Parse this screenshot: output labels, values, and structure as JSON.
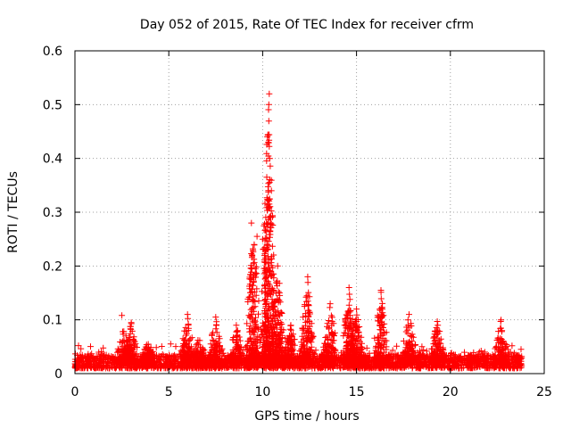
{
  "chart_data": {
    "type": "scatter",
    "title": "Day 052 of 2015, Rate Of TEC Index for receiver cfrm",
    "xlabel": "GPS time / hours",
    "ylabel": "ROTI / TECUs",
    "xlim": [
      0,
      25
    ],
    "ylim": [
      0,
      0.6
    ],
    "xticks": [
      0,
      5,
      10,
      15,
      20,
      25
    ],
    "yticks": [
      0,
      0.1,
      0.2,
      0.3,
      0.4,
      0.5,
      0.6
    ],
    "xtick_labels": [
      "0",
      "5",
      "10",
      "15",
      "20",
      "25"
    ],
    "ytick_labels": [
      "0",
      "0.1",
      "0.2",
      "0.3",
      "0.4",
      "0.5",
      "0.6"
    ],
    "grid": true,
    "marker": "+",
    "series": [
      {
        "name": "ROTI",
        "color": "#ff0000",
        "time_range_hours": [
          0,
          23.8
        ],
        "baseline_roti": [
          0.01,
          0.035
        ],
        "notable_points": [
          {
            "x": 10.35,
            "y": 0.52
          },
          {
            "x": 10.33,
            "y": 0.5
          },
          {
            "x": 10.25,
            "y": 0.44
          },
          {
            "x": 10.3,
            "y": 0.43
          },
          {
            "x": 10.22,
            "y": 0.365
          },
          {
            "x": 10.35,
            "y": 0.315
          },
          {
            "x": 10.4,
            "y": 0.29
          },
          {
            "x": 10.3,
            "y": 0.28
          },
          {
            "x": 9.4,
            "y": 0.28
          },
          {
            "x": 9.7,
            "y": 0.255
          },
          {
            "x": 10.0,
            "y": 0.25
          },
          {
            "x": 9.55,
            "y": 0.24
          },
          {
            "x": 10.8,
            "y": 0.2
          },
          {
            "x": 12.4,
            "y": 0.18
          },
          {
            "x": 14.6,
            "y": 0.16
          },
          {
            "x": 16.3,
            "y": 0.155
          },
          {
            "x": 13.6,
            "y": 0.13
          },
          {
            "x": 15.0,
            "y": 0.12
          },
          {
            "x": 6.0,
            "y": 0.11
          },
          {
            "x": 17.8,
            "y": 0.11
          },
          {
            "x": 2.5,
            "y": 0.108
          },
          {
            "x": 7.5,
            "y": 0.105
          },
          {
            "x": 22.7,
            "y": 0.1
          },
          {
            "x": 19.3,
            "y": 0.097
          },
          {
            "x": 3.0,
            "y": 0.095
          },
          {
            "x": 11.5,
            "y": 0.09
          },
          {
            "x": 8.6,
            "y": 0.09
          },
          {
            "x": 5.1,
            "y": 0.055
          }
        ],
        "activity_bursts": [
          {
            "center": 2.6,
            "peak": 0.09
          },
          {
            "center": 3.0,
            "peak": 0.095
          },
          {
            "center": 3.9,
            "peak": 0.06
          },
          {
            "center": 6.0,
            "peak": 0.11
          },
          {
            "center": 6.6,
            "peak": 0.07
          },
          {
            "center": 7.5,
            "peak": 0.105
          },
          {
            "center": 8.6,
            "peak": 0.09
          },
          {
            "center": 9.5,
            "peak": 0.28
          },
          {
            "center": 10.3,
            "peak": 0.52
          },
          {
            "center": 10.8,
            "peak": 0.2
          },
          {
            "center": 11.5,
            "peak": 0.09
          },
          {
            "center": 12.4,
            "peak": 0.18
          },
          {
            "center": 13.6,
            "peak": 0.13
          },
          {
            "center": 14.6,
            "peak": 0.16
          },
          {
            "center": 15.0,
            "peak": 0.12
          },
          {
            "center": 16.3,
            "peak": 0.155
          },
          {
            "center": 17.8,
            "peak": 0.11
          },
          {
            "center": 19.3,
            "peak": 0.097
          },
          {
            "center": 22.7,
            "peak": 0.1
          }
        ]
      }
    ]
  }
}
